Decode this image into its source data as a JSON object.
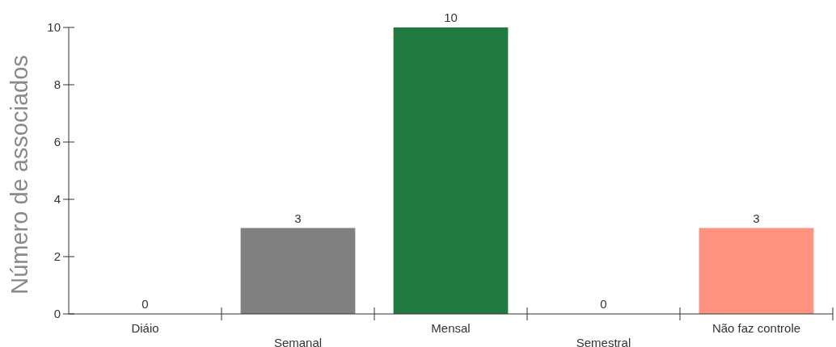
{
  "chart_data": {
    "type": "bar",
    "ylabel": "Número de associados",
    "categories": [
      "Diáio",
      "Semanal",
      "Mensal",
      "Semestral",
      "Não faz controle"
    ],
    "values": [
      0,
      3,
      10,
      0,
      3
    ],
    "colors": [
      null,
      "#808080",
      "#217a3f",
      null,
      "#ff9380"
    ],
    "ylim": [
      0,
      10
    ],
    "yticks": [
      0,
      2,
      4,
      6,
      8,
      10
    ],
    "data_labels": true
  }
}
